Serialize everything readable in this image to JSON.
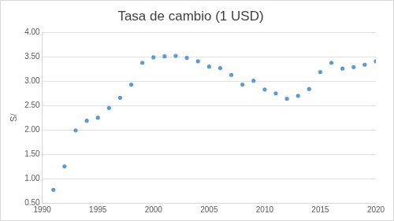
{
  "chart_data": {
    "type": "scatter",
    "title": "Tasa de cambio (1 USD)",
    "y_label": "S/",
    "x": [
      1991,
      1992,
      1993,
      1994,
      1995,
      1996,
      1997,
      1998,
      1999,
      2000,
      2001,
      2002,
      2003,
      2004,
      2005,
      2006,
      2007,
      2008,
      2009,
      2010,
      2011,
      2012,
      2013,
      2014,
      2015,
      2016,
      2017,
      2018,
      2019,
      2020
    ],
    "values": [
      0.77,
      1.25,
      1.99,
      2.19,
      2.25,
      2.45,
      2.66,
      2.93,
      3.38,
      3.49,
      3.51,
      3.52,
      3.48,
      3.41,
      3.3,
      3.27,
      3.13,
      2.93,
      3.01,
      2.83,
      2.75,
      2.64,
      2.7,
      2.84,
      3.19,
      3.38,
      3.26,
      3.29,
      3.34,
      3.41
    ],
    "color": "#5b9bd5",
    "marker": "circle",
    "xlim": [
      1990,
      2020
    ],
    "xticks": [
      1990,
      1995,
      2000,
      2005,
      2010,
      2015,
      2020
    ],
    "ylim": [
      0.5,
      4.0
    ],
    "yticks": [
      {
        "value": 0.5,
        "label": "0.50"
      },
      {
        "value": 1.0,
        "label": "1.00"
      },
      {
        "value": 1.5,
        "label": "1.50"
      },
      {
        "value": 2.0,
        "label": "2.00"
      },
      {
        "value": 2.5,
        "label": "2.50"
      },
      {
        "value": 3.0,
        "label": "3.00"
      },
      {
        "value": 3.5,
        "label": "3.50"
      },
      {
        "value": 4.0,
        "label": "4.00"
      }
    ],
    "grid": true
  }
}
